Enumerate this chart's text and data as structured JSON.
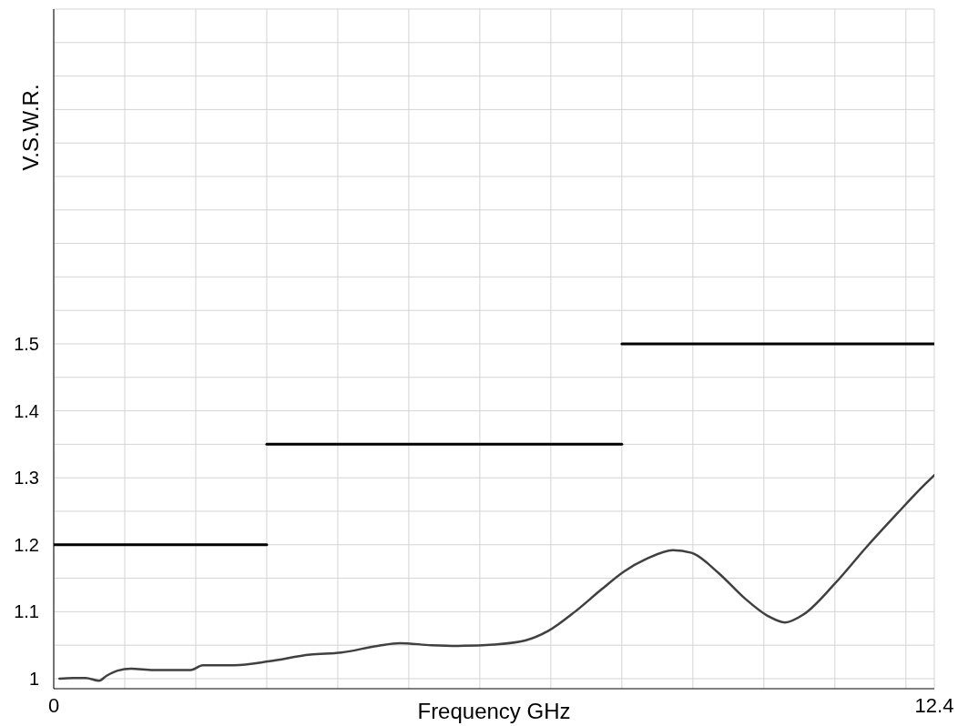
{
  "chart_data": {
    "type": "line",
    "xlabel": "Frequency GHz",
    "ylabel": "V.S.W.R.",
    "xlim": [
      0,
      12.4
    ],
    "xticks": [
      0,
      {
        "value": 1,
        "label": null
      },
      {
        "value": 2,
        "label": null
      },
      {
        "value": 3,
        "label": null
      },
      {
        "value": 4,
        "label": null
      },
      {
        "value": 5,
        "label": null
      },
      {
        "value": 6,
        "label": null
      },
      {
        "value": 7,
        "label": null
      },
      {
        "value": 8,
        "label": null
      },
      {
        "value": 9,
        "label": null
      },
      {
        "value": 10,
        "label": null
      },
      {
        "value": 11,
        "label": null
      },
      {
        "value": 12,
        "label": null
      },
      12.4
    ],
    "ylim": [
      0.985,
      2
    ],
    "yticks": [
      1,
      {
        "value": 1.05,
        "label": null
      },
      1.1,
      {
        "value": 1.15,
        "label": null
      },
      1.2,
      {
        "value": 1.25,
        "label": null
      },
      1.3,
      {
        "value": 1.35,
        "label": null
      },
      1.4,
      {
        "value": 1.45,
        "label": null
      },
      1.5,
      {
        "value": 1.55,
        "label": null
      },
      {
        "value": 1.6,
        "label": null
      },
      {
        "value": 1.65,
        "label": null
      },
      {
        "value": 1.7,
        "label": null
      },
      {
        "value": 1.75,
        "label": null
      },
      {
        "value": 1.8,
        "label": null
      },
      {
        "value": 1.85,
        "label": null
      },
      {
        "value": 1.9,
        "label": null
      },
      {
        "value": 1.95,
        "label": null
      },
      {
        "value": 2,
        "label": null
      }
    ],
    "grid": true,
    "legend": false,
    "marker": "none",
    "line_style": "solid",
    "series": [
      {
        "color": "#404040",
        "x": [
          0.08,
          0.27,
          0.45,
          0.64,
          0.74,
          0.9,
          1.09,
          1.4,
          1.93,
          2.1,
          2.54,
          3.04,
          3.61,
          4.05,
          4.56,
          4.87,
          5.32,
          5.69,
          6.2,
          6.64,
          6.96,
          7.34,
          7.71,
          8.03,
          8.35,
          8.72,
          8.98,
          9.36,
          9.73,
          10.05,
          10.3,
          10.56,
          11.0,
          11.44,
          11.88,
          12.2,
          12.4
        ],
        "values": [
          1.0,
          1.001,
          1.001,
          0.997,
          1.004,
          1.012,
          1.015,
          1.013,
          1.013,
          1.02,
          1.02,
          1.026,
          1.036,
          1.039,
          1.049,
          1.053,
          1.05,
          1.049,
          1.051,
          1.057,
          1.071,
          1.1,
          1.133,
          1.16,
          1.179,
          1.192,
          1.188,
          1.158,
          1.12,
          1.094,
          1.084,
          1.096,
          1.142,
          1.196,
          1.247,
          1.283,
          1.304
        ]
      },
      {
        "color": "#000000",
        "x": [
          0,
          3
        ],
        "values": [
          1.2,
          1.2
        ]
      },
      {
        "color": "#000000",
        "x": [
          3,
          8
        ],
        "values": [
          1.35,
          1.35
        ]
      },
      {
        "color": "#000000",
        "x": [
          8,
          12.4
        ],
        "values": [
          1.5,
          1.5
        ]
      }
    ]
  }
}
